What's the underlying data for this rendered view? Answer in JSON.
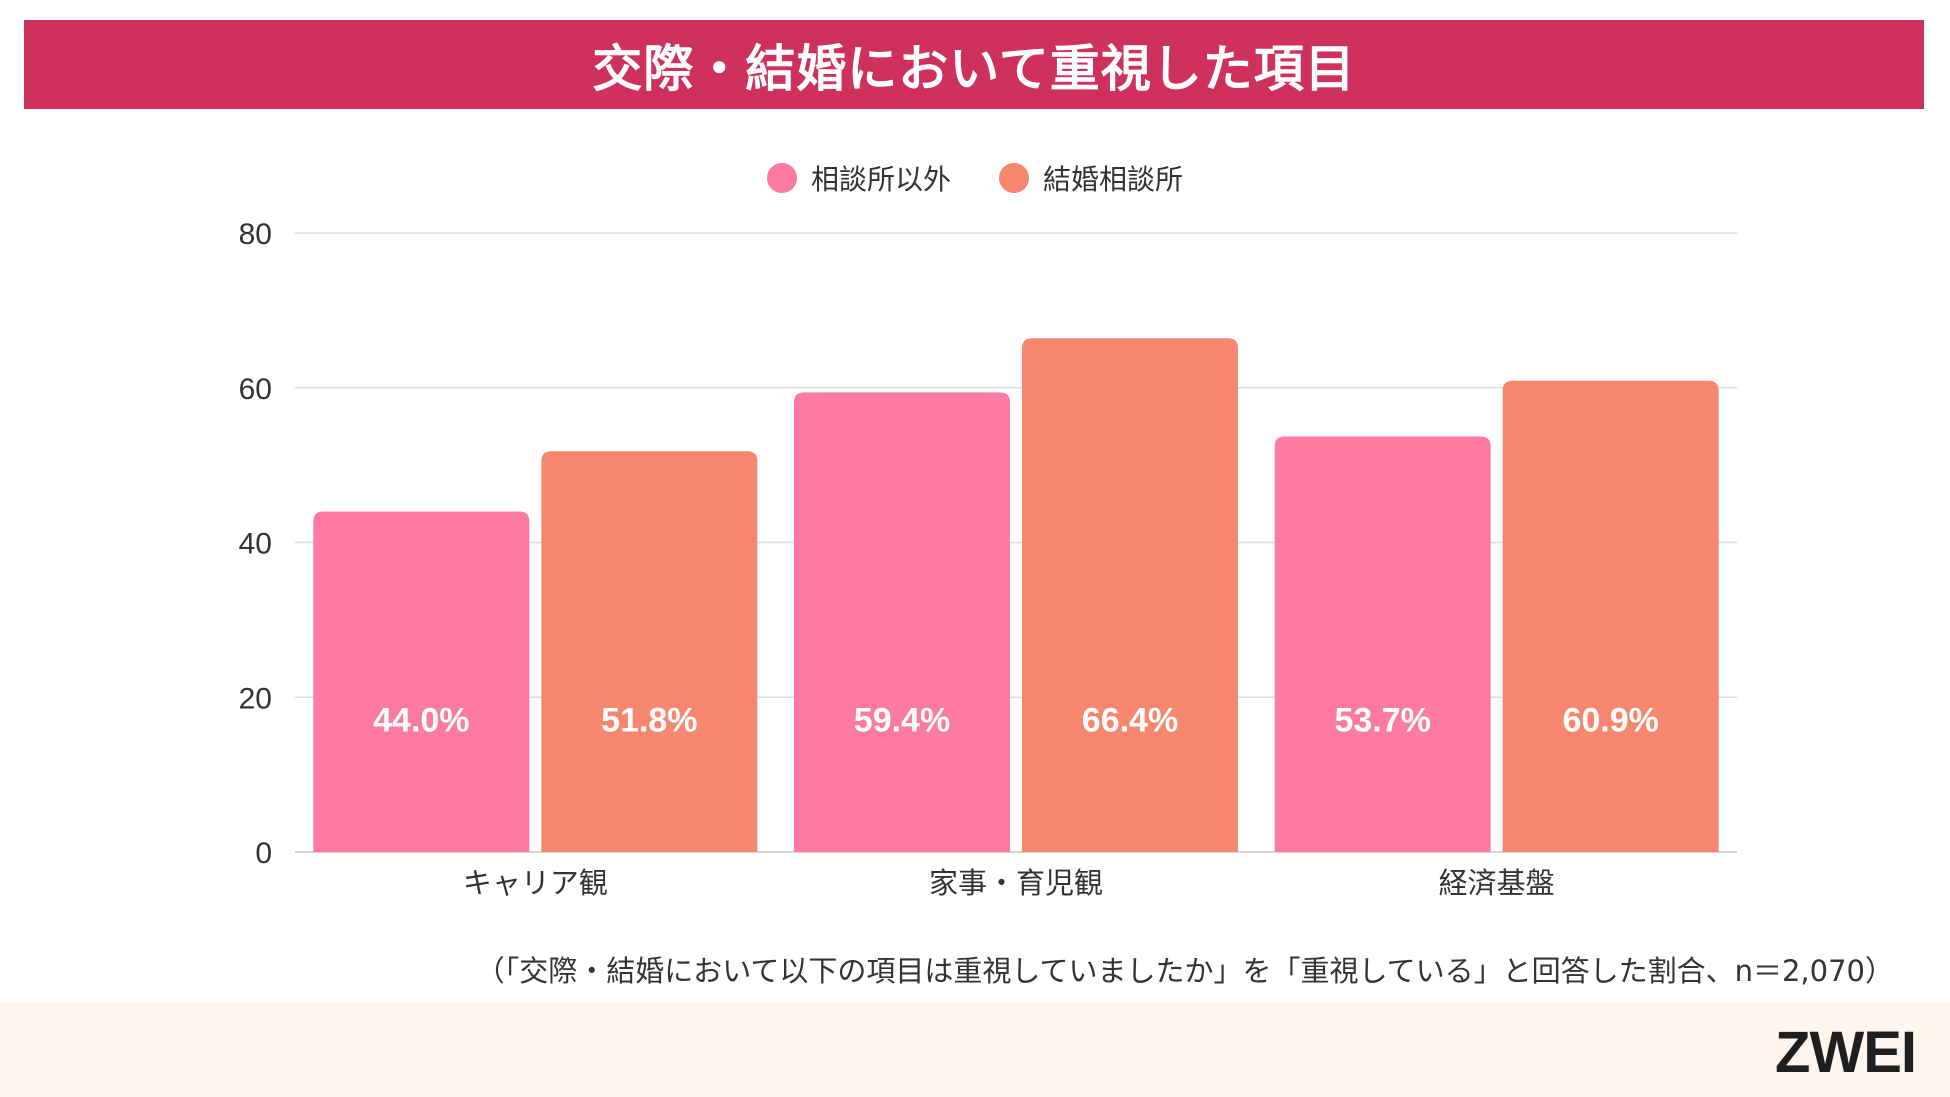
{
  "header": {
    "title": "交際・結婚において重視した項目"
  },
  "colors": {
    "title_bg": "#cd315c",
    "series_1": "#fd7aa0",
    "series_2": "#f6866e",
    "grid": "#dedede",
    "footer_bg": "#fdf5ee"
  },
  "chart_data": {
    "type": "bar",
    "categories": [
      "キャリア観",
      "家事・育児観",
      "経済基盤"
    ],
    "series": [
      {
        "name": "相談所以外",
        "values": [
          44.0,
          59.4,
          53.7
        ],
        "labels": [
          "44.0%",
          "59.4%",
          "53.7%"
        ]
      },
      {
        "name": "結婚相談所",
        "values": [
          51.8,
          66.4,
          60.9
        ],
        "labels": [
          "51.8%",
          "66.4%",
          "60.9%"
        ]
      }
    ],
    "ylim": [
      0,
      80
    ],
    "yticks": [
      "0",
      "20",
      "40",
      "60",
      "80"
    ],
    "grid": true,
    "legend_position": "top-center"
  },
  "note": "（「交際・結婚において以下の項目は重視していましたか」を「重視している」と回答した割合、n＝2,070）",
  "footer": {
    "logo": "ZWEI"
  }
}
